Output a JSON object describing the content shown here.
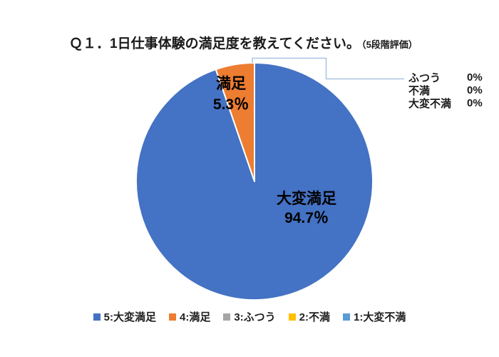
{
  "title": {
    "main": "Ｑ１．1日仕事体験の満足度を教えてください。",
    "suffix": "（5段階評価）"
  },
  "chart_data": {
    "type": "pie",
    "title": "Ｑ１．1日仕事体験の満足度を教えてください。（5段階評価）",
    "categories": [
      "5:大変満足",
      "4:満足",
      "3:ふつう",
      "2:不満",
      "1:大変不満"
    ],
    "values": [
      94.7,
      5.3,
      0,
      0,
      0
    ],
    "unit": "%",
    "colors": [
      "#4472C4",
      "#ED7D31",
      "#A5A5A5",
      "#FFC000",
      "#5B9BD5"
    ],
    "start_angle": 0,
    "direction": "clockwise",
    "legend_position": "bottom",
    "leader_line_color": "#A9C4E4",
    "labels": {
      "inside": [
        {
          "name": "大変満足",
          "value": "94.7％"
        },
        {
          "name": "満足",
          "value": "5.3％"
        }
      ],
      "callout": [
        {
          "name": "ふつう",
          "value": "0%"
        },
        {
          "name": "不満",
          "value": "0%"
        },
        {
          "name": "大変不満",
          "value": "0%"
        }
      ]
    }
  }
}
